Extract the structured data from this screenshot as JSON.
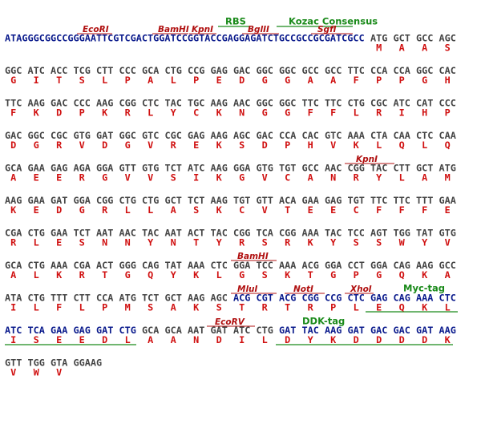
{
  "header": {
    "sequence": "ATAGGGCGGCCGGGAATTCGTCGACTGGATCCGGTACCGAGGAGATCTGCCGCCGCGATCGCC",
    "codons": [
      "ATG",
      "GCT",
      "GCC",
      "AGC"
    ],
    "amino_acids": [
      "M",
      "A",
      "A",
      "S"
    ]
  },
  "rows": [
    {
      "codons": [
        "GGC",
        "ATC",
        "ACC",
        "TCG",
        "CTT",
        "CCC",
        "GCA",
        "CTG",
        "CCG",
        "GAG",
        "GAC",
        "GGC",
        "GGC",
        "GCC",
        "GCC",
        "TTC",
        "CCA",
        "CCA",
        "GGC",
        "CAC"
      ],
      "amino_acids": [
        "G",
        "I",
        "T",
        "S",
        "L",
        "P",
        "A",
        "L",
        "P",
        "E",
        "D",
        "G",
        "G",
        "A",
        "A",
        "F",
        "P",
        "P",
        "G",
        "H"
      ]
    },
    {
      "codons": [
        "TTC",
        "AAG",
        "GAC",
        "CCC",
        "AAG",
        "CGG",
        "CTC",
        "TAC",
        "TGC",
        "AAG",
        "AAC",
        "GGC",
        "GGC",
        "TTC",
        "TTC",
        "CTG",
        "CGC",
        "ATC",
        "CAT",
        "CCC"
      ],
      "amino_acids": [
        "F",
        "K",
        "D",
        "P",
        "K",
        "R",
        "L",
        "Y",
        "C",
        "K",
        "N",
        "G",
        "G",
        "F",
        "F",
        "L",
        "R",
        "I",
        "H",
        "P"
      ]
    },
    {
      "codons": [
        "GAC",
        "GGC",
        "CGC",
        "GTG",
        "GAT",
        "GGC",
        "GTC",
        "CGC",
        "GAG",
        "AAG",
        "AGC",
        "GAC",
        "CCA",
        "CAC",
        "GTC",
        "AAA",
        "CTA",
        "CAA",
        "CTC",
        "CAA"
      ],
      "amino_acids": [
        "D",
        "G",
        "R",
        "V",
        "D",
        "G",
        "V",
        "R",
        "E",
        "K",
        "S",
        "D",
        "P",
        "H",
        "V",
        "K",
        "L",
        "Q",
        "L",
        "Q"
      ]
    },
    {
      "codons": [
        "GCA",
        "GAA",
        "GAG",
        "AGA",
        "GGA",
        "GTT",
        "GTG",
        "TCT",
        "ATC",
        "AAG",
        "GGA",
        "GTG",
        "TGT",
        "GCC",
        "AAC",
        "CGG",
        "TAC",
        "CTT",
        "GCT",
        "ATG"
      ],
      "amino_acids": [
        "A",
        "E",
        "E",
        "R",
        "G",
        "V",
        "V",
        "S",
        "I",
        "K",
        "G",
        "V",
        "C",
        "A",
        "N",
        "R",
        "Y",
        "L",
        "A",
        "M"
      ]
    },
    {
      "codons": [
        "AAG",
        "GAA",
        "GAT",
        "GGA",
        "CGG",
        "CTG",
        "CTG",
        "GCT",
        "TCT",
        "AAG",
        "TGT",
        "GTT",
        "ACA",
        "GAA",
        "GAG",
        "TGT",
        "TTC",
        "TTC",
        "TTT",
        "GAA"
      ],
      "amino_acids": [
        "K",
        "E",
        "D",
        "G",
        "R",
        "L",
        "L",
        "A",
        "S",
        "K",
        "C",
        "V",
        "T",
        "E",
        "E",
        "C",
        "F",
        "F",
        "F",
        "E"
      ]
    },
    {
      "codons": [
        "CGA",
        "CTG",
        "GAA",
        "TCT",
        "AAT",
        "AAC",
        "TAC",
        "AAT",
        "ACT",
        "TAC",
        "CGG",
        "TCA",
        "CGG",
        "AAA",
        "TAC",
        "TCC",
        "AGT",
        "TGG",
        "TAT",
        "GTG"
      ],
      "amino_acids": [
        "R",
        "L",
        "E",
        "S",
        "N",
        "N",
        "Y",
        "N",
        "T",
        "Y",
        "R",
        "S",
        "R",
        "K",
        "Y",
        "S",
        "S",
        "W",
        "Y",
        "V"
      ]
    },
    {
      "codons": [
        "GCA",
        "CTG",
        "AAA",
        "CGA",
        "ACT",
        "GGG",
        "CAG",
        "TAT",
        "AAA",
        "CTC",
        "GGA",
        "TCC",
        "AAA",
        "ACG",
        "GGA",
        "CCT",
        "GGA",
        "CAG",
        "AAG",
        "GCC"
      ],
      "amino_acids": [
        "A",
        "L",
        "K",
        "R",
        "T",
        "G",
        "Q",
        "Y",
        "K",
        "L",
        "G",
        "S",
        "K",
        "T",
        "G",
        "P",
        "G",
        "Q",
        "K",
        "A"
      ]
    },
    {
      "codons": [
        "ATA",
        "CTG",
        "TTT",
        "CTT",
        "CCA",
        "ATG",
        "TCT",
        "GCT",
        "AAG",
        "AGC",
        "ACG",
        "CGT",
        "ACG",
        "CGG",
        "CCG",
        "CTC",
        "GAG",
        "CAG",
        "AAA",
        "CTC"
      ],
      "amino_acids": [
        "I",
        "L",
        "F",
        "L",
        "P",
        "M",
        "S",
        "A",
        "K",
        "S",
        "T",
        "R",
        "T",
        "R",
        "P",
        "L",
        "E",
        "Q",
        "K",
        "L"
      ]
    },
    {
      "codons": [
        "ATC",
        "TCA",
        "GAA",
        "GAG",
        "GAT",
        "CTG",
        "GCA",
        "GCA",
        "AAT",
        "GAT",
        "ATC",
        "CTG",
        "GAT",
        "TAC",
        "AAG",
        "GAT",
        "GAC",
        "GAC",
        "GAT",
        "AAG"
      ],
      "amino_acids": [
        "I",
        "S",
        "E",
        "E",
        "D",
        "L",
        "A",
        "A",
        "N",
        "D",
        "I",
        "L",
        "D",
        "Y",
        "K",
        "D",
        "D",
        "D",
        "D",
        "K"
      ]
    },
    {
      "codons": [
        "GTT",
        "TGG",
        "GTA",
        "GGAAG"
      ],
      "amino_acids": [
        "V",
        "W",
        "V"
      ]
    }
  ],
  "features": [
    {
      "label": "RBS"
    },
    {
      "label": "Kozac Consensus"
    },
    {
      "label": "EcoRI"
    },
    {
      "label": "BamHI"
    },
    {
      "label": "KpnI"
    },
    {
      "label": "BglII"
    },
    {
      "label": "SgfI"
    },
    {
      "label": "KpnI"
    },
    {
      "label": "BamHI"
    },
    {
      "label": "MluI"
    },
    {
      "label": "NotI"
    },
    {
      "label": "XhoI"
    },
    {
      "label": "Myc-tag"
    },
    {
      "label": "EcoRV"
    },
    {
      "label": "DDK-tag"
    }
  ]
}
